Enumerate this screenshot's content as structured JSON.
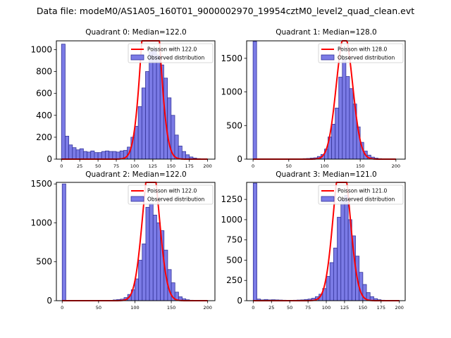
{
  "figure": {
    "title": "Data file: modeM0/AS1A05_160T01_9000002970_19954cztM0_level2_quad_clean.evt"
  },
  "colors": {
    "hist_fill": "#7b7be6",
    "hist_edge": "#34349a",
    "poisson_line": "#ff0000",
    "axes": "#000000"
  },
  "legend": {
    "location": "upper right",
    "observed_label": "Observed distribution"
  },
  "chart_data": [
    {
      "type": "bar",
      "title": "Quadrant 0: Median=122.0",
      "median": 122.0,
      "poisson_label": "Poisson with 122.0",
      "bin_width": 5,
      "bin_starts": [
        0,
        5,
        10,
        15,
        20,
        25,
        30,
        35,
        40,
        45,
        50,
        55,
        60,
        65,
        70,
        75,
        80,
        85,
        90,
        95,
        100,
        105,
        110,
        115,
        120,
        125,
        130,
        135,
        140,
        145,
        150,
        155,
        160,
        165,
        170,
        175,
        180,
        185,
        190,
        195,
        200
      ],
      "counts": [
        1050,
        210,
        130,
        105,
        85,
        95,
        70,
        65,
        75,
        60,
        60,
        70,
        75,
        70,
        70,
        65,
        75,
        80,
        110,
        200,
        300,
        480,
        650,
        800,
        980,
        1000,
        950,
        860,
        740,
        560,
        400,
        220,
        120,
        70,
        40,
        20,
        10,
        5,
        3,
        1,
        0
      ],
      "xlim": [
        -7,
        210
      ],
      "ylim": [
        0,
        1080
      ],
      "xticks": [
        0,
        25,
        50,
        75,
        100,
        125,
        150,
        175,
        200
      ],
      "yticks": [
        0,
        200,
        400,
        600,
        800,
        1000
      ]
    },
    {
      "type": "bar",
      "title": "Quadrant 1: Median=128.0",
      "median": 128.0,
      "poisson_label": "Poisson with 128.0",
      "bin_width": 5,
      "bin_starts": [
        0,
        5,
        10,
        15,
        20,
        25,
        30,
        35,
        40,
        45,
        50,
        55,
        60,
        65,
        70,
        75,
        80,
        85,
        90,
        95,
        100,
        105,
        110,
        115,
        120,
        125,
        130,
        135,
        140,
        145,
        150,
        155,
        160,
        165,
        170,
        175,
        180,
        185,
        190,
        195,
        200
      ],
      "counts": [
        1750,
        5,
        3,
        3,
        2,
        2,
        2,
        2,
        3,
        3,
        3,
        4,
        5,
        6,
        8,
        10,
        15,
        20,
        40,
        70,
        150,
        330,
        520,
        760,
        1220,
        1480,
        1230,
        1050,
        820,
        480,
        250,
        120,
        60,
        30,
        15,
        8,
        4,
        2,
        1,
        0,
        0
      ],
      "xlim": [
        -9,
        213
      ],
      "ylim": [
        0,
        1760
      ],
      "xticks": [
        0,
        50,
        100,
        150,
        200
      ],
      "yticks": [
        0,
        500,
        1000,
        1500
      ]
    },
    {
      "type": "bar",
      "title": "Quadrant 2: Median=122.0",
      "median": 122.0,
      "poisson_label": "Poisson with 122.0",
      "bin_width": 5,
      "bin_starts": [
        0,
        5,
        10,
        15,
        20,
        25,
        30,
        35,
        40,
        45,
        50,
        55,
        60,
        65,
        70,
        75,
        80,
        85,
        90,
        95,
        100,
        105,
        110,
        115,
        120,
        125,
        130,
        135,
        140,
        145,
        150,
        155,
        160,
        165,
        170,
        175,
        180,
        185,
        190,
        195,
        200
      ],
      "counts": [
        1500,
        2,
        1,
        1,
        1,
        1,
        1,
        1,
        1,
        1,
        2,
        2,
        3,
        5,
        10,
        15,
        20,
        40,
        80,
        140,
        280,
        520,
        730,
        1200,
        1250,
        1100,
        1000,
        900,
        650,
        400,
        230,
        110,
        50,
        25,
        12,
        6,
        3,
        2,
        1,
        0,
        0
      ],
      "xlim": [
        -8,
        210
      ],
      "ylim": [
        0,
        1520
      ],
      "xticks": [
        0,
        50,
        100,
        150,
        200
      ],
      "yticks": [
        0,
        500,
        1000,
        1500
      ]
    },
    {
      "type": "bar",
      "title": "Quadrant 3: Median=121.0",
      "median": 121.0,
      "poisson_label": "Poisson with 121.0",
      "bin_width": 5,
      "bin_starts": [
        0,
        5,
        10,
        15,
        20,
        25,
        30,
        35,
        40,
        45,
        50,
        55,
        60,
        65,
        70,
        75,
        80,
        85,
        90,
        95,
        100,
        105,
        110,
        115,
        120,
        125,
        130,
        135,
        140,
        145,
        150,
        155,
        160,
        165,
        170,
        175,
        180,
        185,
        190,
        195,
        200
      ],
      "counts": [
        1450,
        20,
        10,
        15,
        10,
        12,
        10,
        8,
        6,
        5,
        5,
        6,
        8,
        10,
        15,
        20,
        30,
        50,
        80,
        150,
        300,
        470,
        650,
        1030,
        1250,
        1300,
        1000,
        800,
        550,
        350,
        200,
        100,
        50,
        25,
        12,
        6,
        3,
        1,
        0,
        0,
        0
      ],
      "xlim": [
        -9,
        208
      ],
      "ylim": [
        0,
        1460
      ],
      "xticks": [
        0,
        25,
        50,
        75,
        100,
        125,
        150,
        175,
        200
      ],
      "yticks": [
        0,
        250,
        500,
        750,
        1000,
        1250
      ]
    }
  ]
}
